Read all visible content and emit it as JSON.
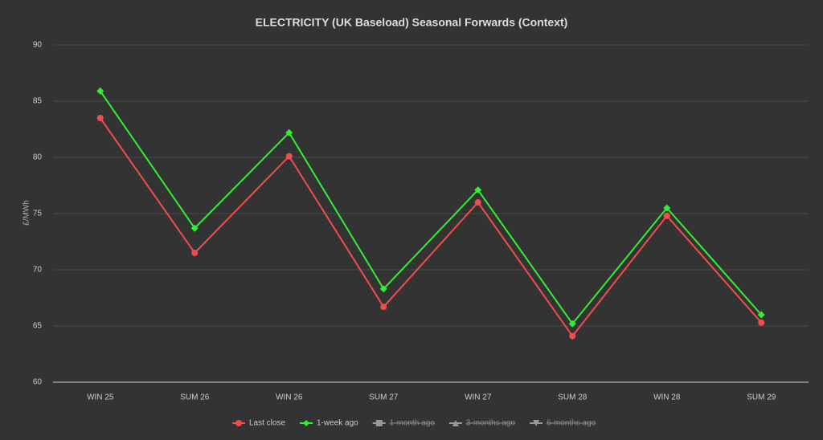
{
  "chart_data": {
    "type": "line",
    "title": "ELECTRICITY (UK Baseload) Seasonal Forwards (Context)",
    "y_label": "£/MWh",
    "categories": [
      "WIN 25",
      "SUM 26",
      "WIN 26",
      "SUM 27",
      "WIN 27",
      "SUM 28",
      "WIN 28",
      "SUM 29"
    ],
    "series": [
      {
        "name": "Last close",
        "color": "#f04d4d",
        "marker": "circle",
        "visible": true,
        "values": [
          83.5,
          71.5,
          80.1,
          66.7,
          76.0,
          64.1,
          74.8,
          65.3
        ]
      },
      {
        "name": "1-week ago",
        "color": "#33ee33",
        "marker": "diamond",
        "visible": true,
        "values": [
          85.9,
          73.7,
          82.2,
          68.3,
          77.1,
          65.2,
          75.5,
          66.0
        ]
      },
      {
        "name": "1-month ago",
        "color": "#999999",
        "marker": "square",
        "visible": false,
        "values": [
          null,
          null,
          null,
          null,
          null,
          null,
          null,
          null
        ]
      },
      {
        "name": "3-months ago",
        "color": "#999999",
        "marker": "triangle",
        "visible": false,
        "values": [
          null,
          null,
          null,
          null,
          null,
          null,
          null,
          null
        ]
      },
      {
        "name": "6-months ago",
        "color": "#999999",
        "marker": "triangle-down",
        "visible": false,
        "values": [
          null,
          null,
          null,
          null,
          null,
          null,
          null,
          null
        ]
      }
    ],
    "ylim": [
      60,
      90
    ],
    "yticks": [
      60,
      65,
      70,
      75,
      80,
      85,
      90
    ],
    "grid": true,
    "legend": "bottom"
  }
}
